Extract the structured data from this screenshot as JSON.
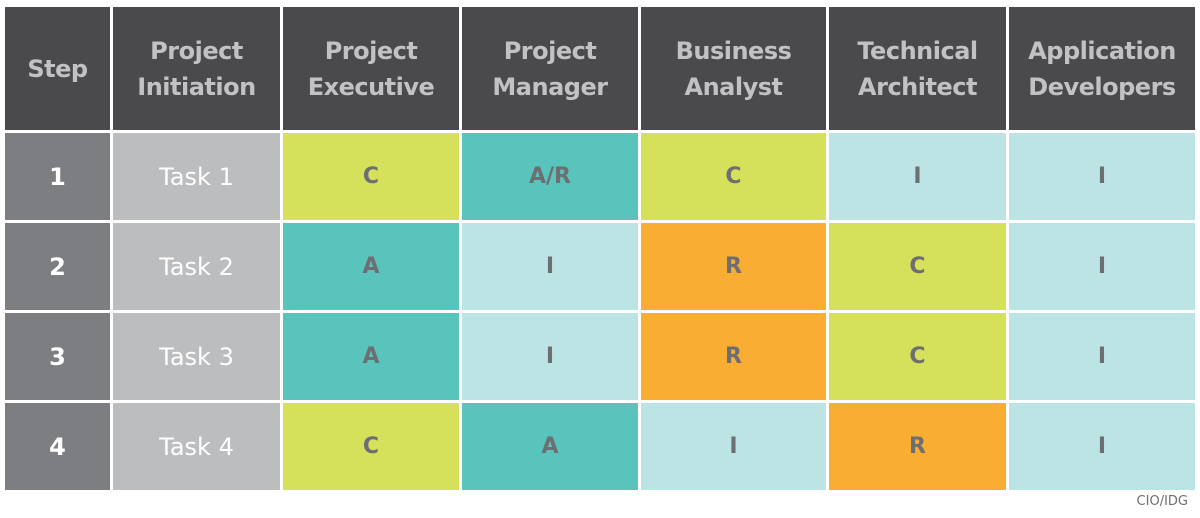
{
  "colors": {
    "header_bg": "#4a4a4c",
    "step_bg": "#7d7e82",
    "task_bg": "#bcbdbf",
    "C": "#d5e15a",
    "A": "#58c4bb",
    "A/R": "#58c4bb",
    "I": "#bce4e4",
    "R": "#f9ad33"
  },
  "headers": [
    "Step",
    "Project Initiation",
    "Project Executive",
    "Project Manager",
    "Business Analyst",
    "Technical Architect",
    "Application Developers"
  ],
  "rows": [
    {
      "step": "1",
      "task": "Task 1",
      "roles": [
        "C",
        "A/R",
        "C",
        "I",
        "I"
      ]
    },
    {
      "step": "2",
      "task": "Task 2",
      "roles": [
        "A",
        "I",
        "R",
        "C",
        "I"
      ]
    },
    {
      "step": "3",
      "task": "Task 3",
      "roles": [
        "A",
        "I",
        "R",
        "C",
        "I"
      ]
    },
    {
      "step": "4",
      "task": "Task 4",
      "roles": [
        "C",
        "A",
        "I",
        "R",
        "I"
      ]
    }
  ],
  "credit": "CIO/IDG"
}
